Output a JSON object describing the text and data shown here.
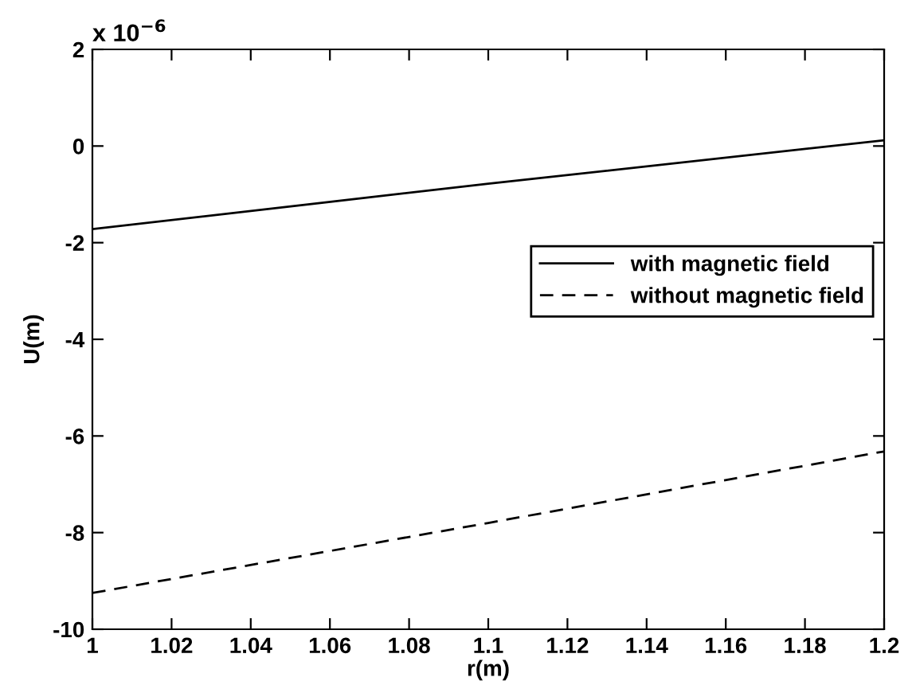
{
  "chart_data": {
    "type": "line",
    "xlabel": "r(m)",
    "ylabel": "U(m)",
    "x": [
      1,
      1.1,
      1.2
    ],
    "series": [
      {
        "name": "with magnetic field",
        "color": "#000000",
        "values": [
          -1.72,
          -0.78,
          0.12
        ],
        "line_style": "solid"
      },
      {
        "name": "without magnetic field",
        "color": "#000000",
        "values": [
          -9.25,
          -7.8,
          -6.32
        ],
        "line_style": "dashed"
      }
    ],
    "xlim": [
      1,
      1.2
    ],
    "xticks": [
      1,
      1.02,
      1.04,
      1.06,
      1.08,
      1.1,
      1.12,
      1.14,
      1.16,
      1.18,
      1.2
    ],
    "ylim": [
      -10,
      2
    ],
    "yticks": [
      -10,
      -8,
      -6,
      -4,
      -2,
      0,
      2
    ],
    "annotations": [
      "x 10$^{−6}$"
    ],
    "legend": "right",
    "grid": false,
    "marker": "none"
  }
}
